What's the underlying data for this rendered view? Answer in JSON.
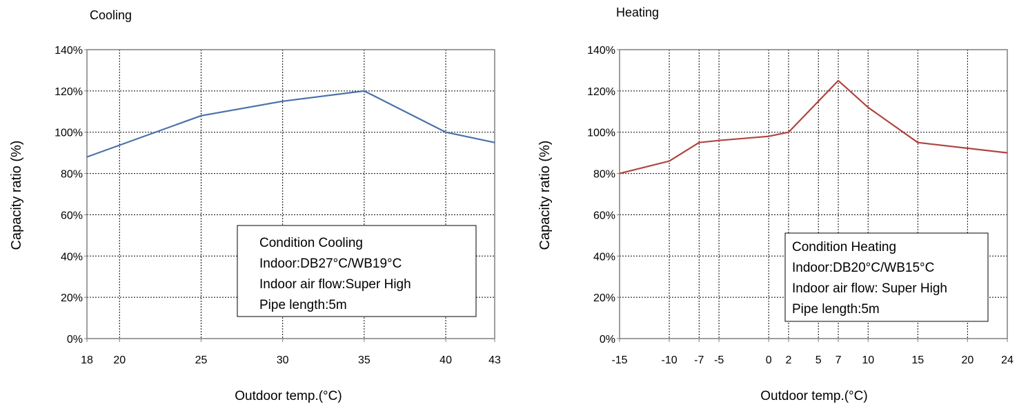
{
  "chart_data": [
    {
      "type": "line",
      "title": "Cooling",
      "xlabel": "Outdoor temp.(°C)",
      "ylabel": "Capacity ratio (%)",
      "xlim": [
        18,
        43
      ],
      "ylim": [
        0,
        140
      ],
      "x_ticks": [
        18,
        20,
        25,
        30,
        35,
        40,
        43
      ],
      "x_tick_labels": [
        "18",
        "20",
        "25",
        "30",
        "35",
        "40",
        "43"
      ],
      "y_ticks": [
        0,
        20,
        40,
        60,
        80,
        100,
        120,
        140
      ],
      "y_tick_labels": [
        "0%",
        "20%",
        "40%",
        "60%",
        "80%",
        "100%",
        "120%",
        "140%"
      ],
      "grid": true,
      "series": [
        {
          "color": "#4a72a8",
          "x": [
            18,
            25,
            30,
            35,
            40,
            43
          ],
          "y": [
            88,
            108,
            115,
            120,
            100,
            95
          ]
        }
      ],
      "annotation": {
        "lines": [
          "Condition Cooling",
          "Indoor:DB27°C/WB19°C",
          "Indoor air flow:Super High",
          "Pipe length:5m"
        ]
      }
    },
    {
      "type": "line",
      "title": "Heating",
      "xlabel": "Outdoor temp.(°C)",
      "ylabel": "Capacity ratio (%)",
      "xlim": [
        -15,
        24
      ],
      "ylim": [
        0,
        140
      ],
      "x_ticks": [
        -15,
        -10,
        -7,
        -5,
        0,
        2,
        5,
        7,
        10,
        15,
        20,
        24
      ],
      "x_tick_labels": [
        "-15",
        "-10",
        "-7",
        "-5",
        "0",
        "2",
        "5",
        "7",
        "10",
        "15",
        "20",
        "24"
      ],
      "y_ticks": [
        0,
        20,
        40,
        60,
        80,
        100,
        120,
        140
      ],
      "y_tick_labels": [
        "0%",
        "20%",
        "40%",
        "60%",
        "80%",
        "100%",
        "120%",
        "140%"
      ],
      "grid": true,
      "series": [
        {
          "color": "#b0443f",
          "x": [
            -15,
            -10,
            -7,
            -5,
            0,
            2,
            7,
            10,
            15,
            24
          ],
          "y": [
            80,
            86,
            95,
            96,
            98,
            100,
            125,
            112,
            95,
            90
          ]
        }
      ],
      "annotation": {
        "lines": [
          "Condition Heating",
          "Indoor:DB20°C/WB15°C",
          "Indoor air flow: Super High",
          "Pipe length:5m"
        ]
      }
    }
  ]
}
